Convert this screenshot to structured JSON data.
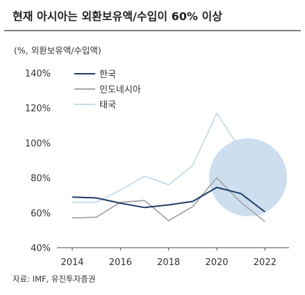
{
  "chart_data": {
    "type": "line",
    "title": "현재 아시아는 외환보유액/수입이 60% 이상",
    "ylabel": "(%, 외환보유액/수입액)",
    "source": "자료: IMF, 유진투자증권",
    "x": [
      2014,
      2015,
      2016,
      2017,
      2018,
      2019,
      2020,
      2021,
      2022
    ],
    "xticks": [
      "2014",
      "2016",
      "2018",
      "2020",
      "2022"
    ],
    "yticks": [
      "40%",
      "60%",
      "80%",
      "100%",
      "120%",
      "140%"
    ],
    "ylim": [
      40,
      140
    ],
    "xlim": [
      2014,
      2023
    ],
    "legend_position": "top-left",
    "highlight": "circle around 2021-2022",
    "series": [
      {
        "name": "한국",
        "color": "#1f3b63",
        "values": [
          69,
          68.5,
          65.5,
          63,
          64.5,
          66.5,
          74.5,
          71,
          60.5
        ]
      },
      {
        "name": "인도네시아",
        "color": "#a6a6a6",
        "values": [
          57,
          57.5,
          66,
          67,
          55.5,
          63.5,
          80,
          66,
          55
        ]
      },
      {
        "name": "태국",
        "color": "#c8dcea",
        "values": [
          66,
          66,
          73,
          81,
          76,
          87,
          117,
          96,
          69
        ]
      }
    ]
  }
}
